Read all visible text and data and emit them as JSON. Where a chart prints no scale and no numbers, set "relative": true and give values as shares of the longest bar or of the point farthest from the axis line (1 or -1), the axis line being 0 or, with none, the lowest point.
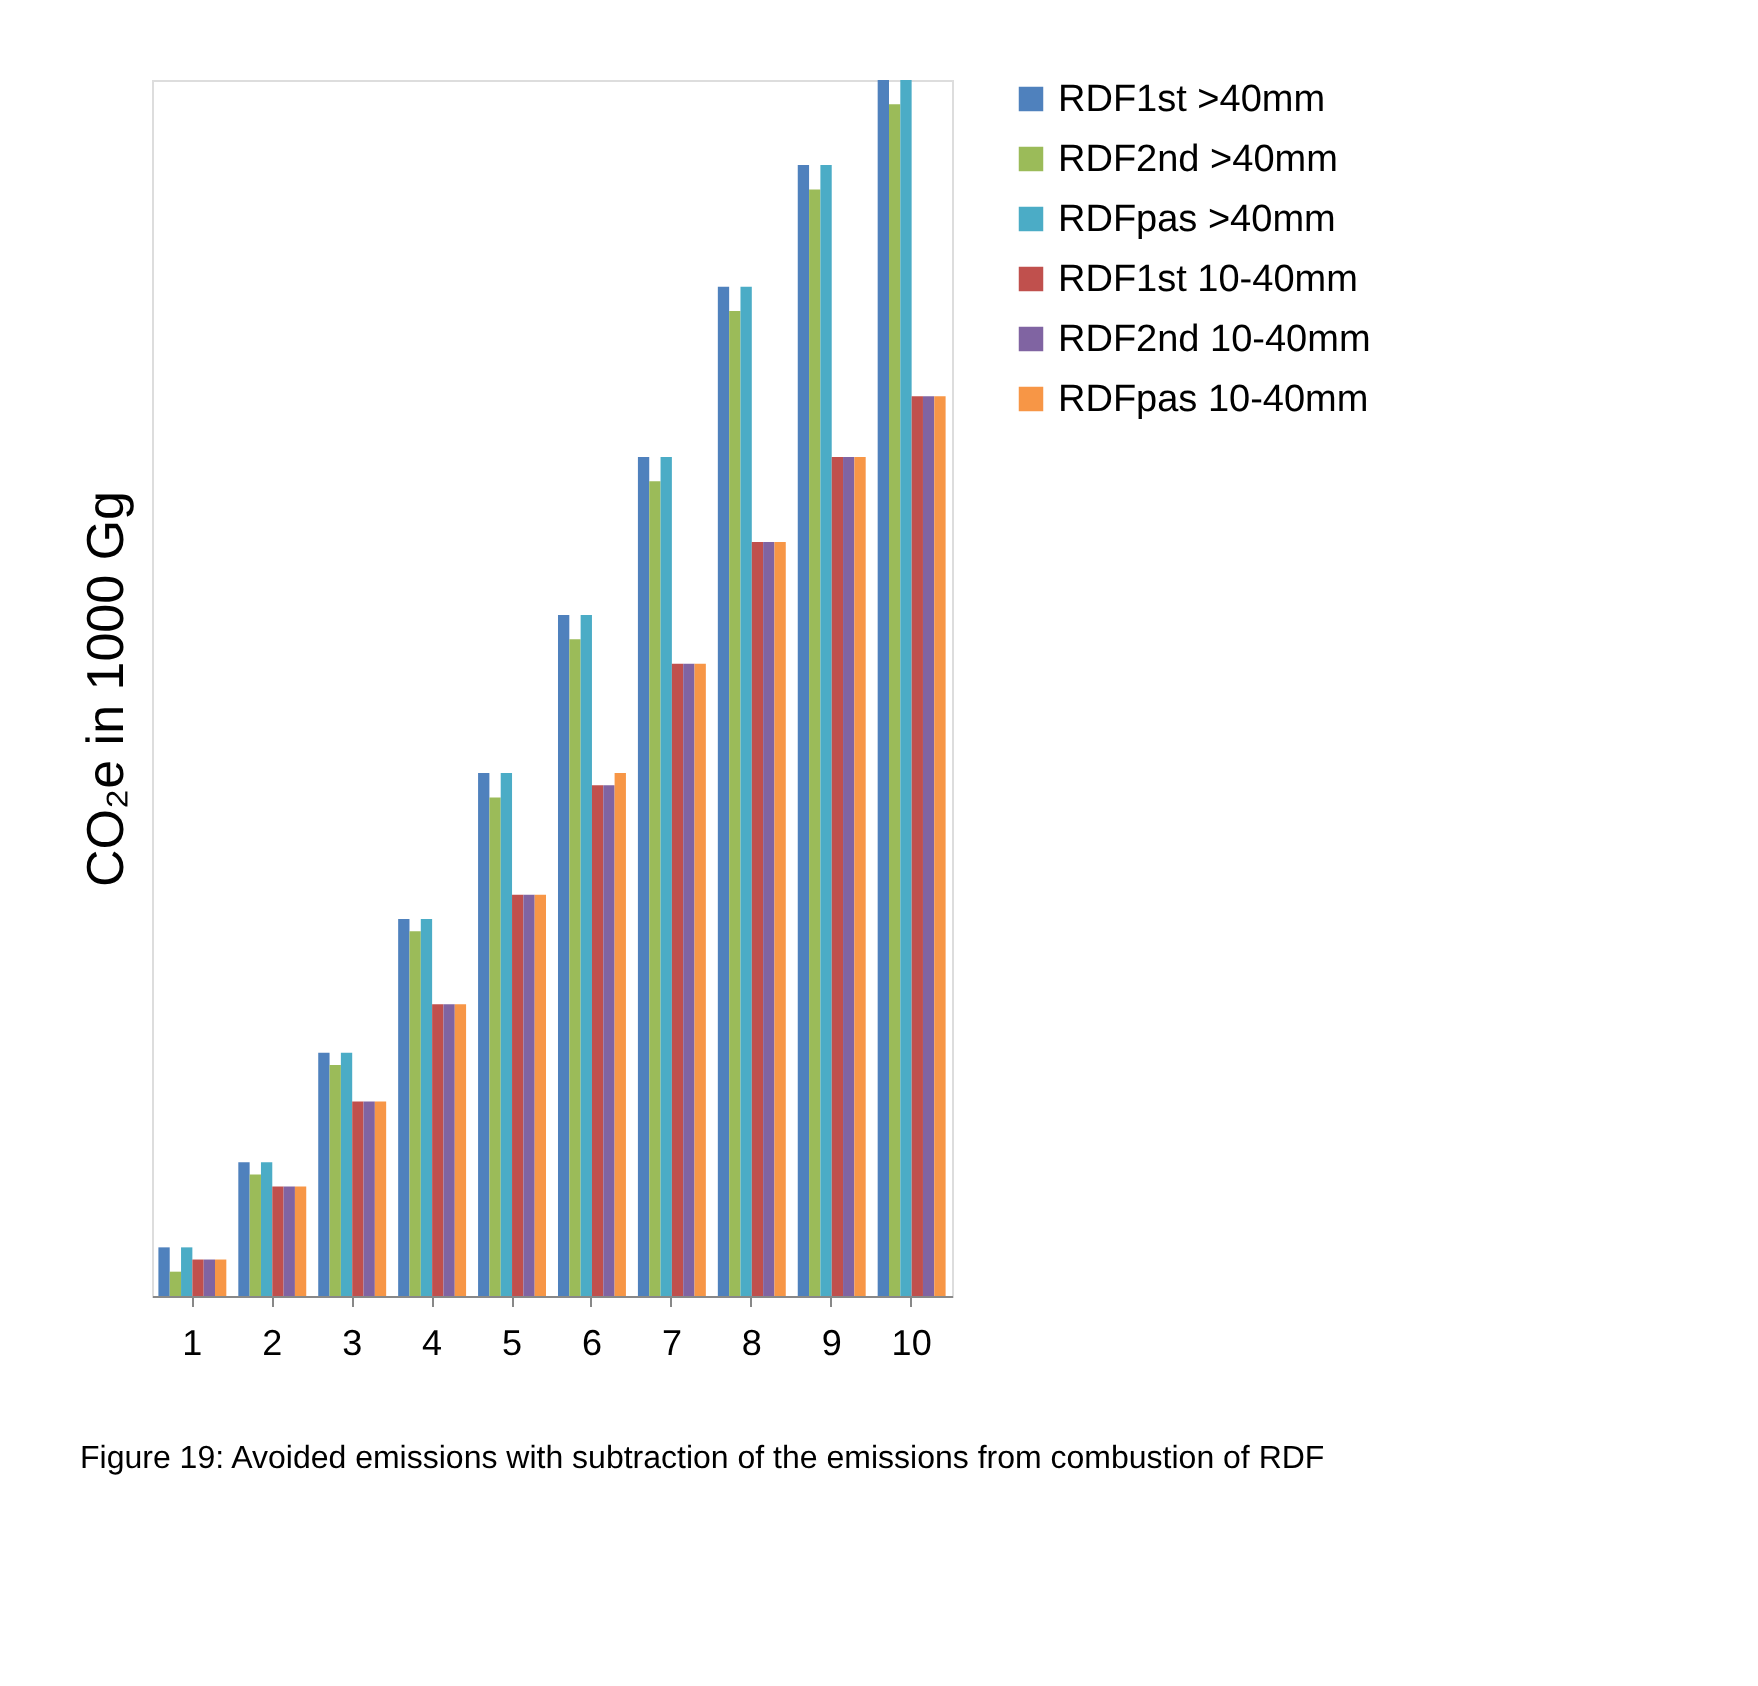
{
  "chart_data": {
    "type": "bar",
    "ylabel": "CO₂e in  1000 Gg",
    "categories": [
      "1",
      "2",
      "3",
      "4",
      "5",
      "6",
      "7",
      "8",
      "9",
      "10"
    ],
    "relative": true,
    "legend": "right",
    "series": [
      {
        "name": "RDF1st >40mm",
        "color": "#4f81bd",
        "values": [
          0.04,
          0.11,
          0.2,
          0.31,
          0.43,
          0.56,
          0.69,
          0.83,
          0.93,
          1.0
        ]
      },
      {
        "name": "RDF2nd >40mm",
        "color": "#9bbb59",
        "values": [
          0.02,
          0.1,
          0.19,
          0.3,
          0.41,
          0.54,
          0.67,
          0.81,
          0.91,
          0.98
        ]
      },
      {
        "name": "RDFpas >40mm",
        "color": "#4bacc6",
        "values": [
          0.04,
          0.11,
          0.2,
          0.31,
          0.43,
          0.56,
          0.69,
          0.83,
          0.93,
          1.0
        ]
      },
      {
        "name": "RDF1st 10-40mm",
        "color": "#c0504d",
        "values": [
          0.03,
          0.09,
          0.16,
          0.24,
          0.33,
          0.42,
          0.52,
          0.62,
          0.69,
          0.74
        ]
      },
      {
        "name": "RDF2nd 10-40mm",
        "color": "#8064a2",
        "values": [
          0.03,
          0.09,
          0.16,
          0.24,
          0.33,
          0.42,
          0.52,
          0.62,
          0.69,
          0.74
        ]
      },
      {
        "name": "RDFpas 10-40mm",
        "color": "#f79646",
        "values": [
          0.03,
          0.09,
          0.16,
          0.24,
          0.33,
          0.43,
          0.52,
          0.62,
          0.69,
          0.74
        ]
      }
    ],
    "annotations": [
      "Figure 19: Avoided emissions with subtraction of the emissions from combustion of RDF"
    ]
  }
}
